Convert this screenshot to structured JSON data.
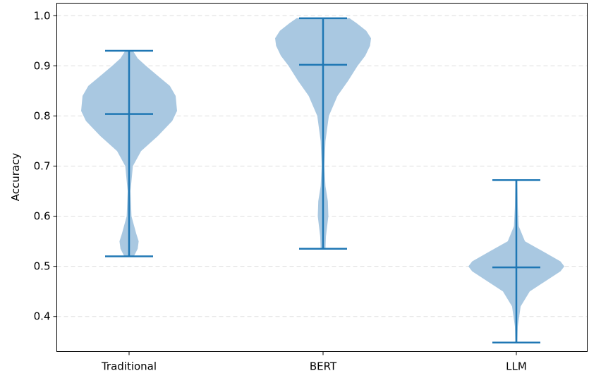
{
  "chart_data": {
    "type": "violin",
    "title": "",
    "xlabel": "",
    "ylabel": "Accuracy",
    "ylim": [
      0.33,
      1.025
    ],
    "yticks": [
      "0.4",
      "0.5",
      "0.6",
      "0.7",
      "0.8",
      "0.9",
      "1.0"
    ],
    "grid": "y-dashed",
    "colors": {
      "body": "#a9c8e1",
      "line": "#1f77b4",
      "grid": "#dddddd"
    },
    "categories": [
      "Traditional",
      "BERT",
      "LLM"
    ],
    "series": [
      {
        "category": "Traditional",
        "min": 0.52,
        "max": 0.93,
        "mean": 0.804,
        "density": [
          [
            0.52,
            0.1
          ],
          [
            0.535,
            0.18
          ],
          [
            0.55,
            0.2
          ],
          [
            0.565,
            0.15
          ],
          [
            0.6,
            0.05
          ],
          [
            0.65,
            0.03
          ],
          [
            0.7,
            0.08
          ],
          [
            0.73,
            0.25
          ],
          [
            0.76,
            0.6
          ],
          [
            0.79,
            0.9
          ],
          [
            0.81,
            1.0
          ],
          [
            0.84,
            0.97
          ],
          [
            0.86,
            0.85
          ],
          [
            0.88,
            0.6
          ],
          [
            0.9,
            0.35
          ],
          [
            0.915,
            0.18
          ],
          [
            0.93,
            0.08
          ]
        ]
      },
      {
        "category": "BERT",
        "min": 0.535,
        "max": 0.995,
        "mean": 0.902,
        "density": [
          [
            0.535,
            0.05
          ],
          [
            0.56,
            0.06
          ],
          [
            0.6,
            0.11
          ],
          [
            0.63,
            0.1
          ],
          [
            0.66,
            0.05
          ],
          [
            0.7,
            0.03
          ],
          [
            0.75,
            0.05
          ],
          [
            0.8,
            0.12
          ],
          [
            0.84,
            0.3
          ],
          [
            0.87,
            0.52
          ],
          [
            0.9,
            0.72
          ],
          [
            0.92,
            0.88
          ],
          [
            0.94,
            0.98
          ],
          [
            0.955,
            1.0
          ],
          [
            0.97,
            0.9
          ],
          [
            0.985,
            0.7
          ],
          [
            0.995,
            0.55
          ]
        ]
      },
      {
        "category": "LLM",
        "min": 0.348,
        "max": 0.672,
        "mean": 0.498,
        "density": [
          [
            0.348,
            0.02
          ],
          [
            0.38,
            0.03
          ],
          [
            0.42,
            0.09
          ],
          [
            0.45,
            0.28
          ],
          [
            0.47,
            0.6
          ],
          [
            0.49,
            0.92
          ],
          [
            0.5,
            1.0
          ],
          [
            0.51,
            0.92
          ],
          [
            0.53,
            0.55
          ],
          [
            0.55,
            0.18
          ],
          [
            0.58,
            0.05
          ],
          [
            0.62,
            0.03
          ],
          [
            0.672,
            0.02
          ]
        ]
      }
    ]
  }
}
